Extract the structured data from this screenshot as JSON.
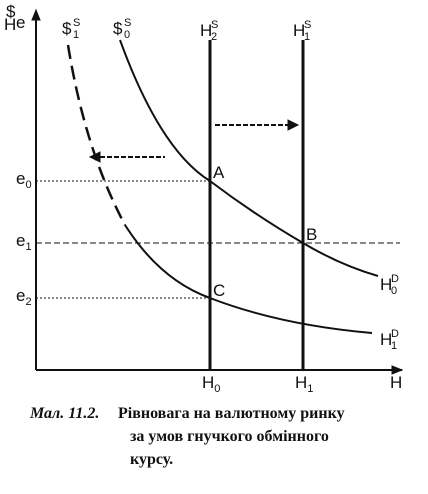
{
  "axis": {
    "y_label": {
      "top": "$",
      "bottom": "Н",
      "right": "e"
    },
    "x_label": "Н"
  },
  "curves": [
    {
      "base": "$",
      "sub": "1",
      "sup": "S"
    },
    {
      "base": "$",
      "sub": "0",
      "sup": "S"
    },
    {
      "base": "H",
      "sub": "2",
      "sup": "S"
    },
    {
      "base": "H",
      "sub": "1",
      "sup": "S"
    },
    {
      "base": "H",
      "sub": "0",
      "sup": "D"
    },
    {
      "base": "H",
      "sub": "1",
      "sup": "D"
    }
  ],
  "points": [
    "A",
    "B",
    "C"
  ],
  "y_ticks": [
    {
      "base": "e",
      "sub": "0"
    },
    {
      "base": "e",
      "sub": "1"
    },
    {
      "base": "e",
      "sub": "2"
    }
  ],
  "x_ticks": [
    {
      "base": "H",
      "sub": "0"
    },
    {
      "base": "H",
      "sub": "1"
    }
  ],
  "caption": {
    "number": "Мал. 11.2.",
    "lines": [
      "Рівновага на валютному ринку",
      "за умов гнучкого обмінного",
      "курсу."
    ]
  }
}
